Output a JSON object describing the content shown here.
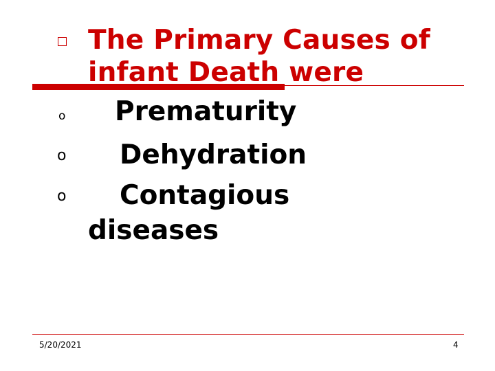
{
  "slide": {
    "title": [
      "The Primary Causes of",
      "infant Death were"
    ],
    "items": [
      "Prematurity",
      "Dehydration",
      "Contagious"
    ],
    "item_continuation": "diseases",
    "bullet_marker": "o",
    "footer": {
      "date": "5/20/2021",
      "page_number": "4"
    },
    "accent_color": "#cc0000",
    "title_bullet_icon": "hollow-square-icon"
  }
}
